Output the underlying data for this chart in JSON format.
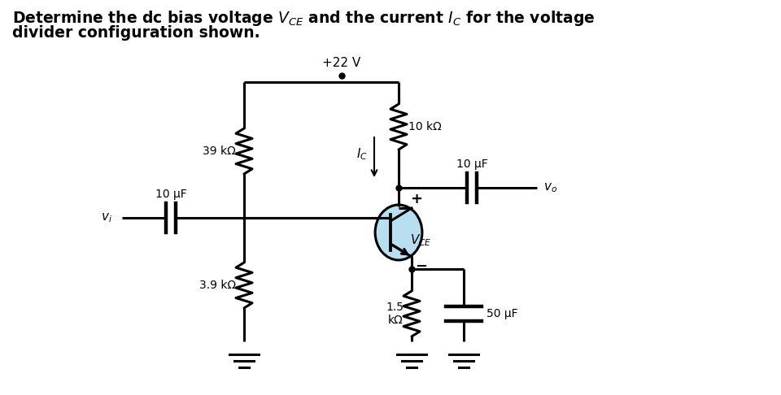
{
  "vcc_label": "+22 V",
  "r1_label": "39 kΩ",
  "r2_label": "3.9 kΩ",
  "rc_label": "10 kΩ",
  "re_label": "1.5\nkΩ",
  "c1_label": "10 μF",
  "c2_label": "10 μF",
  "ce_label": "50 μF",
  "vi_label": "v_i",
  "vo_label": "v_o",
  "bg_color": "#ffffff",
  "circuit_color": "#000000",
  "transistor_fill": "#b8dff0",
  "text_color": "#000000",
  "figsize": [
    9.6,
    4.86
  ],
  "dpi": 100
}
